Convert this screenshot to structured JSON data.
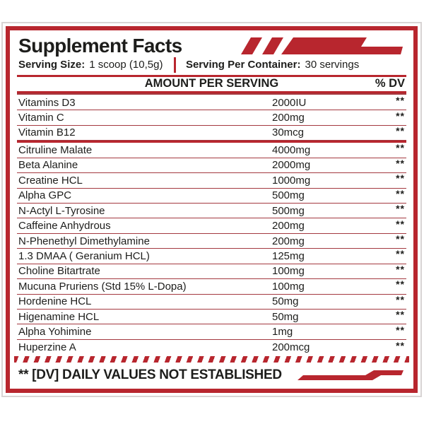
{
  "accent": "#b8262e",
  "label": {
    "title": "Supplement Facts",
    "serving_size_label": "Serving Size:",
    "serving_size_value": "1 scoop (10,5g)",
    "servings_per_container_label": "Serving Per Container:",
    "servings_per_container_value": "30 servings",
    "amount_header": "AMOUNT PER SERVING",
    "dv_header": "% DV",
    "footnote": "** [DV] DAILY VALUES NOT ESTABLISHED"
  },
  "table": {
    "sections": [
      {
        "name": "vitamins",
        "rows": [
          {
            "name": "Vitamins D3",
            "amount": "2000IU",
            "dv": "**"
          },
          {
            "name": "Vitamin C",
            "amount": "200mg",
            "dv": "**"
          },
          {
            "name": "Vitamin B12",
            "amount": "30mcg",
            "dv": "**"
          }
        ]
      },
      {
        "name": "actives",
        "rows": [
          {
            "name": "Citruline Malate",
            "amount": "4000mg",
            "dv": "**"
          },
          {
            "name": "Beta Alanine",
            "amount": "2000mg",
            "dv": "**"
          },
          {
            "name": "Creatine HCL",
            "amount": "1000mg",
            "dv": "**"
          },
          {
            "name": "Alpha GPC",
            "amount": "500mg",
            "dv": "**"
          },
          {
            "name": "N-Actyl L-Tyrosine",
            "amount": "500mg",
            "dv": "**"
          },
          {
            "name": "Caffeine Anhydrous",
            "amount": "200mg",
            "dv": "**"
          },
          {
            "name": "N-Phenethyl Dimethylamine",
            "amount": "200mg",
            "dv": "**"
          },
          {
            "name": "1.3 DMAA ( Geranium HCL)",
            "amount": "125mg",
            "dv": "**"
          },
          {
            "name": "Choline Bitartrate",
            "amount": "100mg",
            "dv": "**"
          },
          {
            "name": "Mucuna Pruriens (Std 15% L-Dopa)",
            "amount": "100mg",
            "dv": "**"
          },
          {
            "name": "Hordenine HCL",
            "amount": "50mg",
            "dv": "**"
          },
          {
            "name": "Higenamine HCL",
            "amount": "50mg",
            "dv": "**"
          },
          {
            "name": "Alpha Yohimine",
            "amount": "1mg",
            "dv": "**"
          },
          {
            "name": "Huperzine A",
            "amount": "200mcg",
            "dv": "**"
          }
        ]
      }
    ]
  }
}
